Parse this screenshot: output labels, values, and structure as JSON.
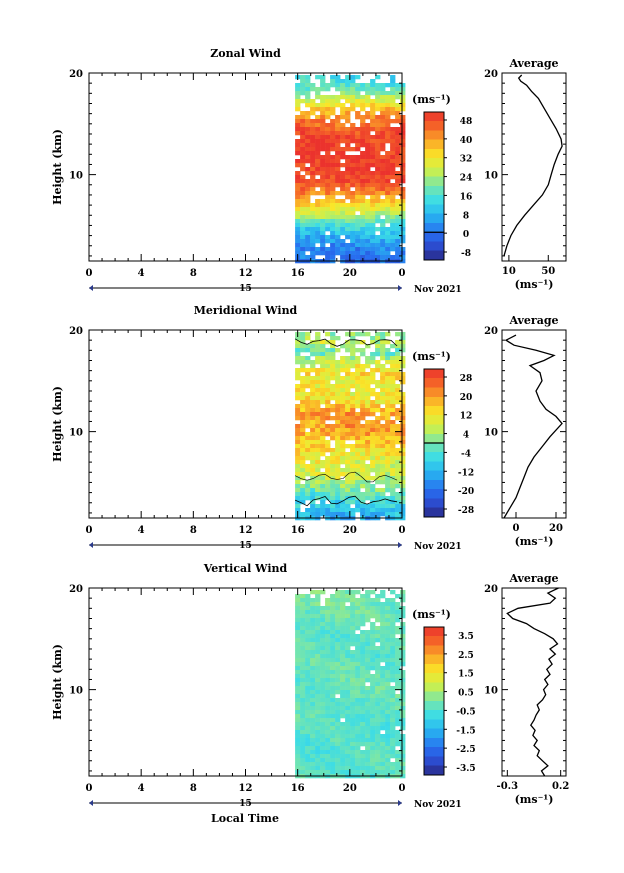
{
  "figure": {
    "xlabel": "Local Time",
    "date_label": "Nov 2021",
    "unit_label": "(ms⁻¹)"
  },
  "chart_data": [
    {
      "type": "heatmap",
      "title": "Zonal Wind",
      "xlabel": "",
      "ylabel": "Height (km)",
      "x_ticks": [
        "0",
        "4",
        "8",
        "12",
        "16",
        "20",
        "0"
      ],
      "x_range_hours": [
        0,
        24
      ],
      "day_label": "15",
      "y_ticks": [
        "20",
        "10"
      ],
      "ylim": [
        1.5,
        20
      ],
      "data_x_start_hour": 15.8,
      "colorbar": {
        "unit": "(ms⁻¹)",
        "ticks": [
          "48",
          "40",
          "32",
          "24",
          "16",
          "8",
          "0",
          "-8"
        ],
        "range": [
          -12,
          52
        ],
        "zero_line": 0
      },
      "profile": {
        "title": "Average",
        "x_ticks": [
          "10",
          "50"
        ],
        "xlim": [
          3,
          68
        ],
        "unit": "(ms⁻¹)",
        "points": [
          [
            5,
            2
          ],
          [
            8,
            3
          ],
          [
            12,
            4
          ],
          [
            18,
            5
          ],
          [
            26,
            6
          ],
          [
            35,
            7
          ],
          [
            44,
            8
          ],
          [
            50,
            9
          ],
          [
            53,
            10
          ],
          [
            56,
            11
          ],
          [
            60,
            12
          ],
          [
            64,
            12.8
          ],
          [
            63,
            13.5
          ],
          [
            58,
            14.5
          ],
          [
            52,
            15.5
          ],
          [
            46,
            16.5
          ],
          [
            40,
            17.5
          ],
          [
            33,
            18.2
          ],
          [
            28,
            18.8
          ],
          [
            22,
            19.2
          ],
          [
            20,
            19.5
          ],
          [
            23,
            19.8
          ]
        ]
      }
    },
    {
      "type": "heatmap",
      "title": "Meridional Wind",
      "xlabel": "",
      "ylabel": "Height (km)",
      "x_ticks": [
        "0",
        "4",
        "8",
        "12",
        "16",
        "20",
        "0"
      ],
      "x_range_hours": [
        0,
        24
      ],
      "day_label": "15",
      "y_ticks": [
        "20",
        "10"
      ],
      "ylim": [
        1.5,
        20
      ],
      "data_x_start_hour": 15.8,
      "colorbar": {
        "unit": "(ms⁻¹)",
        "ticks": [
          "28",
          "20",
          "12",
          "4",
          "-4",
          "-12",
          "-20",
          "-28"
        ],
        "range": [
          -32,
          32
        ],
        "zero_line": 0
      },
      "profile": {
        "title": "Average",
        "x_ticks": [
          "0",
          "20"
        ],
        "xlim": [
          -7,
          25
        ],
        "unit": "(ms⁻¹)",
        "points": [
          [
            -6,
            1.5
          ],
          [
            -3,
            2.5
          ],
          [
            0,
            3.5
          ],
          [
            2,
            4.5
          ],
          [
            4,
            5.5
          ],
          [
            6,
            6.5
          ],
          [
            9,
            7.5
          ],
          [
            13,
            8.5
          ],
          [
            17,
            9.5
          ],
          [
            23,
            10.8
          ],
          [
            20,
            11.5
          ],
          [
            15,
            12.2
          ],
          [
            12,
            13
          ],
          [
            10,
            14
          ],
          [
            13,
            15
          ],
          [
            12,
            15.8
          ],
          [
            7,
            16.5
          ],
          [
            14,
            17
          ],
          [
            19,
            17.5
          ],
          [
            10,
            18
          ],
          [
            -1,
            18.5
          ],
          [
            -5,
            19
          ],
          [
            0,
            19.5
          ]
        ]
      }
    },
    {
      "type": "heatmap",
      "title": "Vertical Wind",
      "xlabel": "Local Time",
      "ylabel": "Height (km)",
      "x_ticks": [
        "0",
        "4",
        "8",
        "12",
        "16",
        "20",
        "0"
      ],
      "x_range_hours": [
        0,
        24
      ],
      "day_label": "15",
      "y_ticks": [
        "20",
        "10"
      ],
      "ylim": [
        1.5,
        20
      ],
      "data_x_start_hour": 15.8,
      "colorbar": {
        "unit": "(ms⁻¹)",
        "ticks": [
          "3.5",
          "2.5",
          "1.5",
          "0.5",
          "-0.5",
          "-1.5",
          "-2.5",
          "-3.5"
        ],
        "range": [
          -4,
          4
        ]
      },
      "profile": {
        "title": "Average",
        "x_ticks": [
          "-0.3",
          "0.2"
        ],
        "xlim": [
          -0.35,
          0.25
        ],
        "unit": "(ms⁻¹)",
        "points": [
          [
            0.05,
            1.5
          ],
          [
            0.02,
            2
          ],
          [
            0.08,
            2.5
          ],
          [
            0.03,
            3
          ],
          [
            -0.02,
            3.5
          ],
          [
            0.0,
            4
          ],
          [
            -0.05,
            4.5
          ],
          [
            -0.02,
            5
          ],
          [
            -0.06,
            5.5
          ],
          [
            -0.04,
            6
          ],
          [
            -0.08,
            6.5
          ],
          [
            -0.05,
            7
          ],
          [
            -0.03,
            7.5
          ],
          [
            0.0,
            8
          ],
          [
            -0.02,
            8.5
          ],
          [
            0.03,
            9
          ],
          [
            0.06,
            9.5
          ],
          [
            0.04,
            10
          ],
          [
            0.08,
            10.5
          ],
          [
            0.05,
            11
          ],
          [
            0.1,
            11.5
          ],
          [
            0.07,
            12
          ],
          [
            0.12,
            12.5
          ],
          [
            0.09,
            13
          ],
          [
            0.15,
            13.5
          ],
          [
            0.1,
            14
          ],
          [
            0.17,
            14.5
          ],
          [
            0.13,
            15
          ],
          [
            0.05,
            15.5
          ],
          [
            -0.05,
            16
          ],
          [
            -0.12,
            16.5
          ],
          [
            -0.25,
            17
          ],
          [
            -0.3,
            17.5
          ],
          [
            -0.2,
            18
          ],
          [
            0.1,
            18.5
          ],
          [
            0.15,
            19
          ],
          [
            0.08,
            19.5
          ],
          [
            0.18,
            20
          ]
        ]
      }
    }
  ]
}
